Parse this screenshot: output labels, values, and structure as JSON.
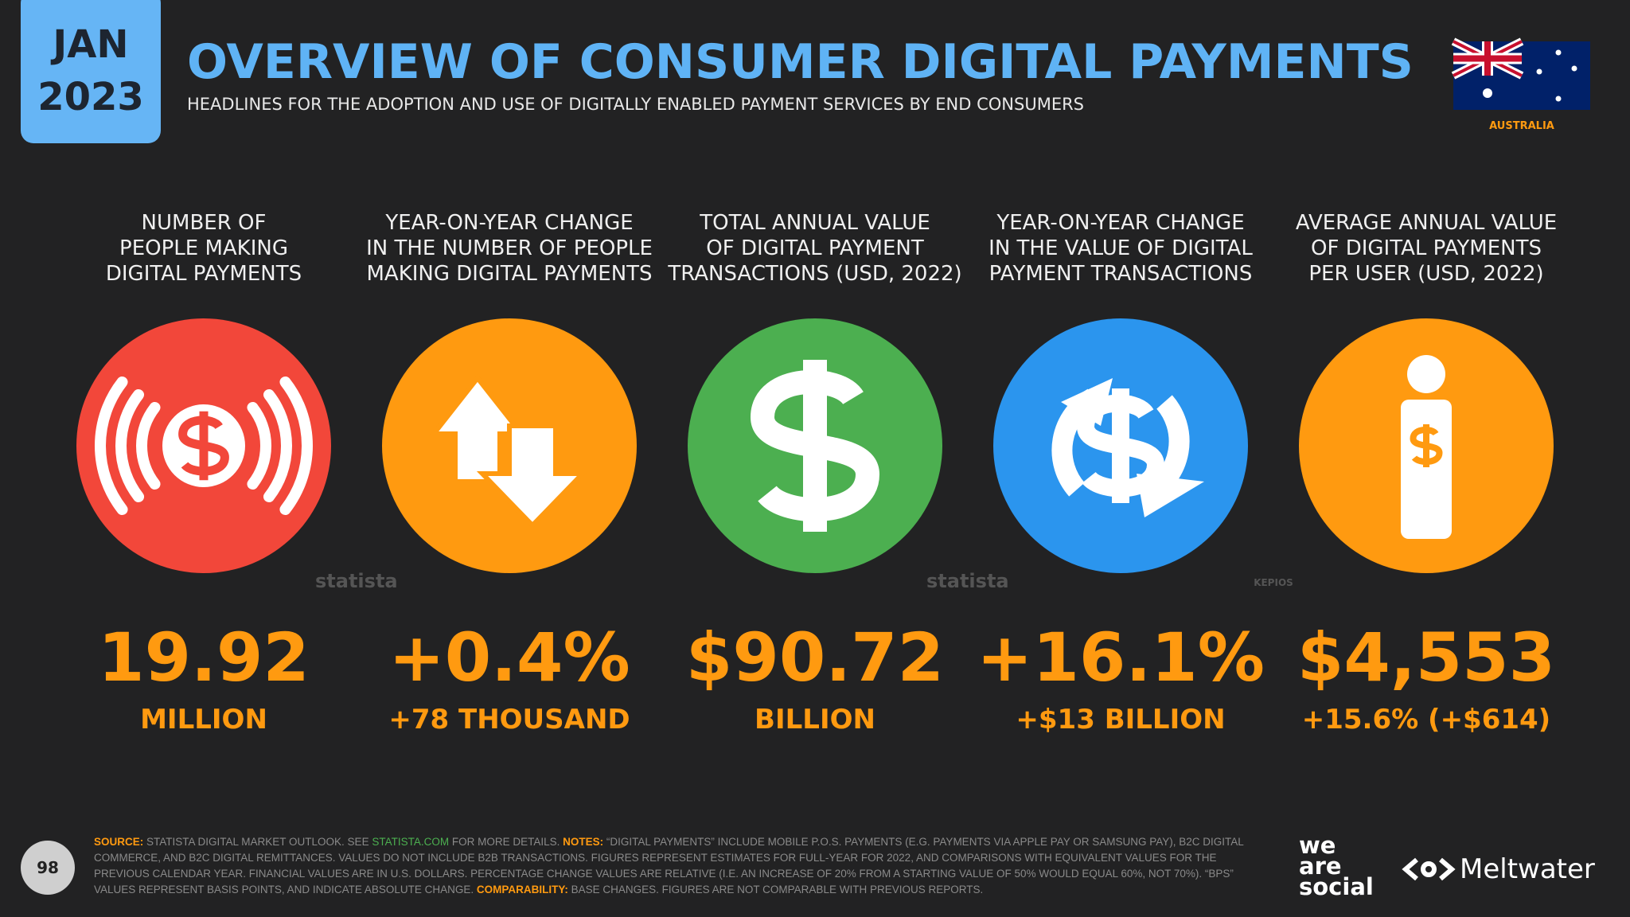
{
  "header": {
    "month": "JAN",
    "year": "2023",
    "title": "OVERVIEW OF CONSUMER DIGITAL PAYMENTS",
    "subtitle": "HEADLINES FOR THE ADOPTION AND USE OF DIGITALLY ENABLED PAYMENT SERVICES BY END CONSUMERS",
    "country": "AUSTRALIA"
  },
  "stats": [
    {
      "label": [
        "NUMBER OF",
        "PEOPLE MAKING",
        "DIGITAL PAYMENTS"
      ],
      "value": "19.92",
      "detail": "MILLION",
      "color": "#f2473a"
    },
    {
      "label": [
        "YEAR-ON-YEAR CHANGE",
        "IN THE NUMBER OF PEOPLE",
        "MAKING DIGITAL PAYMENTS"
      ],
      "value": "+0.4%",
      "detail": "+78 THOUSAND",
      "color": "#ff9a10"
    },
    {
      "label": [
        "TOTAL ANNUAL VALUE",
        "OF DIGITAL PAYMENT",
        "TRANSACTIONS (USD, 2022)"
      ],
      "value": "$90.72",
      "detail": "BILLION",
      "color": "#4caf50"
    },
    {
      "label": [
        "YEAR-ON-YEAR CHANGE",
        "IN THE VALUE OF DIGITAL",
        "PAYMENT TRANSACTIONS"
      ],
      "value": "+16.1%",
      "detail": "+$13 BILLION",
      "color": "#2b95ee"
    },
    {
      "label": [
        "AVERAGE ANNUAL VALUE",
        "OF DIGITAL PAYMENTS",
        "PER USER (USD, 2022)"
      ],
      "value": "$4,553",
      "detail": "+15.6% (+$614)",
      "color": "#ff9a10"
    }
  ],
  "watermarks": [
    "statista",
    "statista",
    "KEPIOS"
  ],
  "footer": {
    "page": "98",
    "notes": [
      {
        "text": "SOURCE:",
        "style": "key"
      },
      {
        "text": " STATISTA DIGITAL MARKET OUTLOOK. SEE ",
        "style": "plain"
      },
      {
        "text": "STATISTA.COM",
        "style": "link"
      },
      {
        "text": " FOR MORE DETAILS. ",
        "style": "plain"
      },
      {
        "text": "NOTES:",
        "style": "key"
      },
      {
        "text": " “DIGITAL PAYMENTS” INCLUDE MOBILE P.O.S. PAYMENTS (E.G. PAYMENTS VIA APPLE PAY OR SAMSUNG PAY), B2C DIGITAL COMMERCE, AND B2C DIGITAL REMITTANCES. VALUES DO NOT INCLUDE B2B TRANSACTIONS. FIGURES REPRESENT ESTIMATES FOR FULL-YEAR FOR 2022, AND COMPARISONS WITH EQUIVALENT VALUES FOR THE PREVIOUS CALENDAR YEAR. FINANCIAL VALUES ARE IN U.S. DOLLARS. PERCENTAGE CHANGE VALUES ARE RELATIVE (I.E. AN INCREASE OF 20% FROM A STARTING VALUE OF 50% WOULD EQUAL 60%, NOT 70%). “BPS” VALUES REPRESENT BASIS POINTS, AND INDICATE ABSOLUTE CHANGE. ",
        "style": "plain"
      },
      {
        "text": "COMPARABILITY:",
        "style": "key"
      },
      {
        "text": " BASE CHANGES. FIGURES ARE NOT COMPARABLE WITH PREVIOUS REPORTS.",
        "style": "plain"
      }
    ]
  },
  "brands": {
    "we_are_social": [
      "we",
      "are",
      "social"
    ],
    "meltwater": "Meltwater"
  }
}
